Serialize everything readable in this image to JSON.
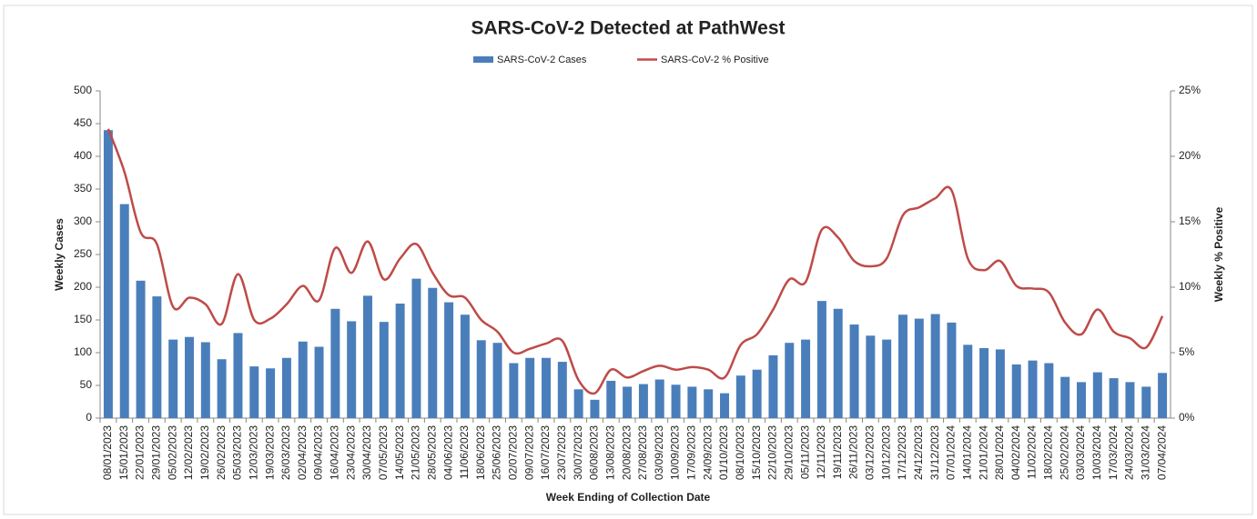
{
  "chart_data": {
    "type": "bar_line",
    "title": "SARS-CoV-2 Detected at PathWest",
    "x_label": "Week Ending of Collection Date",
    "y_label": "Weekly Cases",
    "y2_label": "Weekly % Positive",
    "legend": "top",
    "categories": [
      "08/01/2023",
      "15/01/2023",
      "22/01/2023",
      "29/01/2023",
      "05/02/2023",
      "12/02/2023",
      "19/02/2023",
      "26/02/2023",
      "05/03/2023",
      "12/03/2023",
      "19/03/2023",
      "26/03/2023",
      "02/04/2023",
      "09/04/2023",
      "16/04/2023",
      "23/04/2023",
      "30/04/2023",
      "07/05/2023",
      "14/05/2023",
      "21/05/2023",
      "28/05/2023",
      "04/06/2023",
      "11/06/2023",
      "18/06/2023",
      "25/06/2023",
      "02/07/2023",
      "09/07/2023",
      "16/07/2023",
      "23/07/2023",
      "30/07/2023",
      "06/08/2023",
      "13/08/2023",
      "20/08/2023",
      "27/08/2023",
      "03/09/2023",
      "10/09/2023",
      "17/09/2023",
      "24/09/2023",
      "01/10/2023",
      "08/10/2023",
      "15/10/2023",
      "22/10/2023",
      "29/10/2023",
      "05/11/2023",
      "12/11/2023",
      "19/11/2023",
      "26/11/2023",
      "03/12/2023",
      "10/12/2023",
      "17/12/2023",
      "24/12/2023",
      "31/12/2023",
      "07/01/2024",
      "14/01/2024",
      "21/01/2024",
      "28/01/2024",
      "04/02/2024",
      "11/02/2024",
      "18/02/2024",
      "25/02/2024",
      "03/03/2024",
      "10/03/2024",
      "17/03/2024",
      "24/03/2024",
      "31/03/2024",
      "07/04/2024"
    ],
    "series": [
      {
        "name": "SARS-CoV-2 Cases",
        "type": "bar",
        "color": "#4a7ebb",
        "values": [
          440,
          327,
          210,
          186,
          120,
          124,
          116,
          90,
          130,
          79,
          76,
          92,
          117,
          109,
          167,
          148,
          187,
          147,
          175,
          213,
          199,
          177,
          158,
          119,
          115,
          84,
          92,
          92,
          86,
          44,
          28,
          57,
          48,
          52,
          59,
          51,
          48,
          44,
          38,
          65,
          74,
          96,
          115,
          120,
          179,
          167,
          143,
          126,
          120,
          158,
          152,
          159,
          146,
          112,
          107,
          105,
          82,
          88,
          84,
          63,
          55,
          70,
          61,
          55,
          48,
          69
        ]
      },
      {
        "name": "SARS-CoV-2 % Positive",
        "type": "line",
        "axis": "y2",
        "color": "#be4b48",
        "values": [
          22.1,
          18.8,
          14.2,
          13.3,
          8.5,
          9.2,
          8.7,
          7.2,
          11.0,
          7.5,
          7.6,
          8.7,
          10.1,
          9.0,
          13.0,
          11.1,
          13.5,
          10.6,
          12.2,
          13.3,
          11.1,
          9.4,
          9.2,
          7.5,
          6.6,
          5.0,
          5.3,
          5.7,
          5.9,
          2.9,
          1.9,
          3.7,
          3.1,
          3.6,
          4.0,
          3.7,
          3.9,
          3.7,
          3.1,
          5.6,
          6.4,
          8.3,
          10.6,
          10.4,
          14.4,
          13.8,
          12.0,
          11.6,
          12.2,
          15.5,
          16.1,
          16.8,
          17.4,
          12.2,
          11.3,
          12.0,
          10.1,
          9.9,
          9.6,
          7.3,
          6.4,
          8.3,
          6.6,
          6.1,
          5.4,
          7.8
        ]
      }
    ],
    "ylim": [
      0,
      500
    ],
    "yticks": [
      0,
      50,
      100,
      150,
      200,
      250,
      300,
      350,
      400,
      450,
      500
    ],
    "y2lim": [
      0,
      25
    ],
    "y2ticks": [
      {
        "value": 0,
        "label": "0%"
      },
      {
        "value": 5,
        "label": "5%"
      },
      {
        "value": 10,
        "label": "10%"
      },
      {
        "value": 15,
        "label": "15%"
      },
      {
        "value": 20,
        "label": "20%"
      },
      {
        "value": 25,
        "label": "25%"
      }
    ]
  }
}
